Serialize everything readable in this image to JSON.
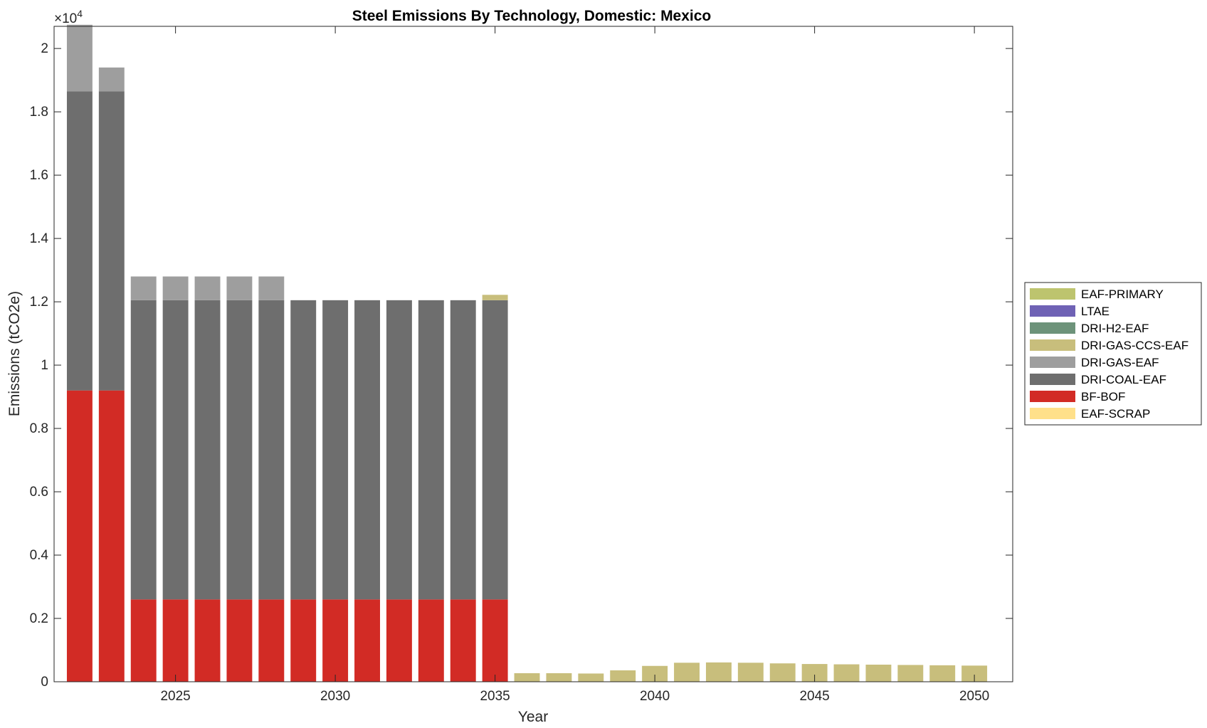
{
  "chart_data": {
    "type": "bar",
    "stacked": true,
    "title": "Steel Emissions By Technology, Domestic: Mexico",
    "xlabel": "Year",
    "ylabel": "Emissions (tCO2e)",
    "y_exponent_label": "×10",
    "y_exponent_power": "4",
    "ylim": [
      0,
      20700
    ],
    "xlim": [
      2021.2,
      2051.2
    ],
    "x_ticks": [
      2025,
      2030,
      2035,
      2040,
      2045,
      2050
    ],
    "y_ticks": [
      0,
      2000,
      4000,
      6000,
      8000,
      10000,
      12000,
      14000,
      16000,
      18000,
      20000
    ],
    "y_tick_labels": [
      "0",
      "0.2",
      "0.4",
      "0.6",
      "0.8",
      "1",
      "1.2",
      "1.4",
      "1.6",
      "1.8",
      "2"
    ],
    "legend_position": "outside-right",
    "categories": [
      2022,
      2023,
      2024,
      2025,
      2026,
      2027,
      2028,
      2029,
      2030,
      2031,
      2032,
      2033,
      2034,
      2035,
      2036,
      2037,
      2038,
      2039,
      2040,
      2041,
      2042,
      2043,
      2044,
      2045,
      2046,
      2047,
      2048,
      2049,
      2050
    ],
    "series": [
      {
        "name": "EAF-SCRAP",
        "color": "#FFE08A",
        "values": [
          0,
          0,
          0,
          0,
          0,
          0,
          0,
          0,
          0,
          0,
          0,
          0,
          0,
          0,
          0,
          0,
          0,
          0,
          0,
          0,
          0,
          0,
          0,
          0,
          0,
          0,
          0,
          0,
          0
        ]
      },
      {
        "name": "BF-BOF",
        "color": "#D22B25",
        "values": [
          9200,
          9200,
          2600,
          2600,
          2600,
          2600,
          2600,
          2600,
          2600,
          2600,
          2600,
          2600,
          2600,
          2600,
          0,
          0,
          0,
          0,
          0,
          0,
          0,
          0,
          0,
          0,
          0,
          0,
          0,
          0,
          0
        ]
      },
      {
        "name": "DRI-COAL-EAF",
        "color": "#6E6E6E",
        "values": [
          9450,
          9450,
          9450,
          9450,
          9450,
          9450,
          9450,
          9450,
          9450,
          9450,
          9450,
          9450,
          9450,
          9450,
          0,
          0,
          0,
          0,
          0,
          0,
          0,
          0,
          0,
          0,
          0,
          0,
          0,
          0,
          0
        ]
      },
      {
        "name": "DRI-GAS-EAF",
        "color": "#9E9E9E",
        "values": [
          2100,
          750,
          750,
          750,
          750,
          750,
          750,
          0,
          0,
          0,
          0,
          0,
          0,
          0,
          0,
          0,
          0,
          0,
          0,
          0,
          0,
          0,
          0,
          0,
          0,
          0,
          0,
          0,
          0
        ]
      },
      {
        "name": "DRI-GAS-CCS-EAF",
        "color": "#C8BE7C",
        "values": [
          0,
          0,
          0,
          0,
          0,
          0,
          0,
          0,
          0,
          0,
          0,
          0,
          0,
          170,
          270,
          270,
          260,
          360,
          500,
          600,
          610,
          600,
          580,
          560,
          550,
          540,
          530,
          520,
          510
        ]
      },
      {
        "name": "DRI-H2-EAF",
        "color": "#6D937A",
        "values": [
          0,
          0,
          0,
          0,
          0,
          0,
          0,
          0,
          0,
          0,
          0,
          0,
          0,
          0,
          0,
          0,
          0,
          0,
          0,
          0,
          0,
          0,
          0,
          0,
          0,
          0,
          0,
          0,
          0
        ]
      },
      {
        "name": "LTAE",
        "color": "#6F62B5",
        "values": [
          0,
          0,
          0,
          0,
          0,
          0,
          0,
          0,
          0,
          0,
          0,
          0,
          0,
          0,
          0,
          0,
          0,
          0,
          0,
          0,
          0,
          0,
          0,
          0,
          0,
          0,
          0,
          0,
          0
        ]
      },
      {
        "name": "EAF-PRIMARY",
        "color": "#BDC46E",
        "values": [
          0,
          0,
          0,
          0,
          0,
          0,
          0,
          0,
          0,
          0,
          0,
          0,
          0,
          0,
          0,
          0,
          0,
          0,
          0,
          0,
          0,
          0,
          0,
          0,
          0,
          0,
          0,
          0,
          0
        ]
      }
    ],
    "legend_order": [
      "EAF-PRIMARY",
      "LTAE",
      "DRI-H2-EAF",
      "DRI-GAS-CCS-EAF",
      "DRI-GAS-EAF",
      "DRI-COAL-EAF",
      "BF-BOF",
      "EAF-SCRAP"
    ]
  }
}
